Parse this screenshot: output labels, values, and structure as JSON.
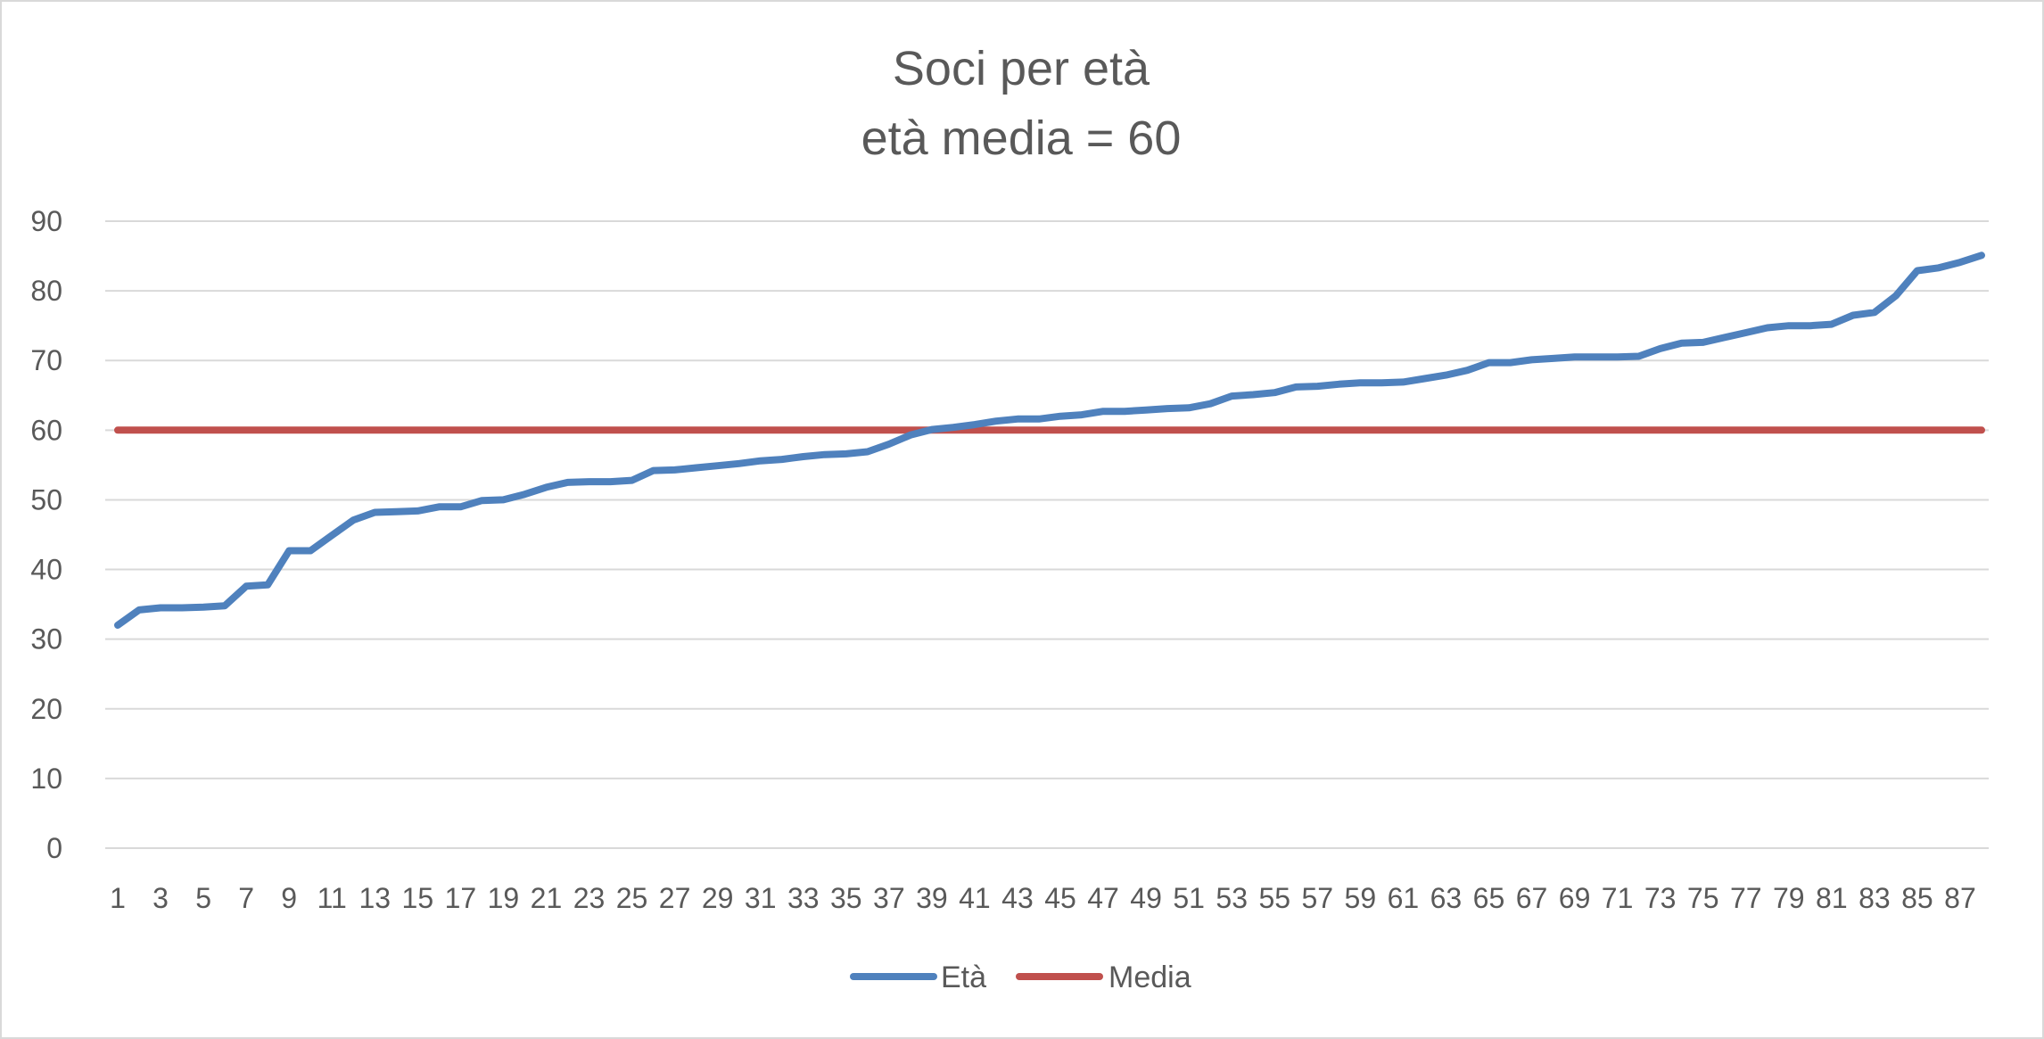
{
  "chart_data": {
    "type": "line",
    "title": "Soci per età",
    "subtitle": "età media = 60",
    "xlabel": "",
    "ylabel": "",
    "ylim": [
      0,
      90
    ],
    "yticks": [
      "0",
      "10",
      "20",
      "30",
      "40",
      "50",
      "60",
      "70",
      "80",
      "90"
    ],
    "x": [
      1,
      2,
      3,
      4,
      5,
      6,
      7,
      8,
      9,
      10,
      11,
      12,
      13,
      14,
      15,
      16,
      17,
      18,
      19,
      20,
      21,
      22,
      23,
      24,
      25,
      26,
      27,
      28,
      29,
      30,
      31,
      32,
      33,
      34,
      35,
      36,
      37,
      38,
      39,
      40,
      41,
      42,
      43,
      44,
      45,
      46,
      47,
      48,
      49,
      50,
      51,
      52,
      53,
      54,
      55,
      56,
      57,
      58,
      59,
      60,
      61,
      62,
      63,
      64,
      65,
      66,
      67,
      68,
      69,
      70,
      71,
      72,
      73,
      74,
      75,
      76,
      77,
      78,
      79,
      80,
      81,
      82,
      83,
      84,
      85,
      86,
      87,
      88
    ],
    "xtick_labels": [
      "1",
      "3",
      "5",
      "7",
      "9",
      "11",
      "13",
      "15",
      "17",
      "19",
      "21",
      "23",
      "25",
      "27",
      "29",
      "31",
      "33",
      "35",
      "37",
      "39",
      "41",
      "43",
      "45",
      "47",
      "49",
      "51",
      "53",
      "55",
      "57",
      "59",
      "61",
      "63",
      "65",
      "67",
      "69",
      "71",
      "73",
      "75",
      "77",
      "79",
      "81",
      "83",
      "85",
      "87"
    ],
    "grid": true,
    "legend": "bottom",
    "series": [
      {
        "name": "Età",
        "color": "#4f81bd",
        "values": [
          32,
          34.2,
          34.5,
          34.5,
          34.6,
          34.8,
          37.6,
          37.8,
          42.7,
          42.7,
          44.9,
          47.1,
          48.2,
          48.3,
          48.4,
          49,
          49,
          49.9,
          50,
          50.8,
          51.8,
          52.5,
          52.6,
          52.6,
          52.8,
          54.2,
          54.3,
          54.6,
          54.9,
          55.2,
          55.6,
          55.8,
          56.2,
          56.5,
          56.6,
          56.9,
          58,
          59.3,
          60.1,
          60.4,
          60.8,
          61.3,
          61.6,
          61.6,
          62,
          62.2,
          62.7,
          62.7,
          62.9,
          63.1,
          63.2,
          63.8,
          64.9,
          65.1,
          65.4,
          66.2,
          66.3,
          66.6,
          66.8,
          66.8,
          66.9,
          67.4,
          67.9,
          68.6,
          69.7,
          69.7,
          70.1,
          70.3,
          70.5,
          70.5,
          70.5,
          70.6,
          71.7,
          72.5,
          72.6,
          73.3,
          74,
          74.7,
          75,
          75,
          75.2,
          76.5,
          76.9,
          79.3,
          82.9,
          83.3,
          84.1,
          85.1
        ]
      },
      {
        "name": "Media",
        "color": "#c0504d",
        "values": [
          60,
          60,
          60,
          60,
          60,
          60,
          60,
          60,
          60,
          60,
          60,
          60,
          60,
          60,
          60,
          60,
          60,
          60,
          60,
          60,
          60,
          60,
          60,
          60,
          60,
          60,
          60,
          60,
          60,
          60,
          60,
          60,
          60,
          60,
          60,
          60,
          60,
          60,
          60,
          60,
          60,
          60,
          60,
          60,
          60,
          60,
          60,
          60,
          60,
          60,
          60,
          60,
          60,
          60,
          60,
          60,
          60,
          60,
          60,
          60,
          60,
          60,
          60,
          60,
          60,
          60,
          60,
          60,
          60,
          60,
          60,
          60,
          60,
          60,
          60,
          60,
          60,
          60,
          60,
          60,
          60,
          60,
          60,
          60,
          60,
          60,
          60,
          60
        ]
      }
    ]
  }
}
